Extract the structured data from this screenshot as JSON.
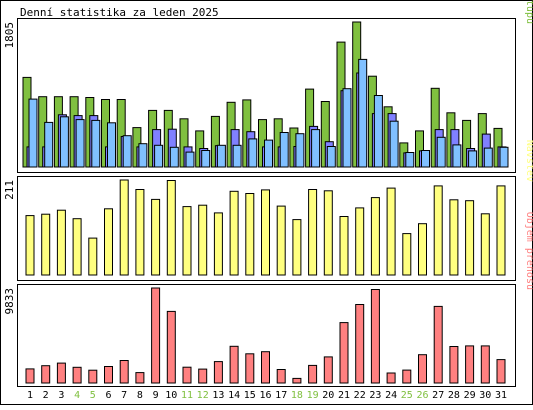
{
  "title": "Denní statistika za leden 2025",
  "days": [
    "1",
    "2",
    "3",
    "4",
    "5",
    "6",
    "7",
    "8",
    "9",
    "10",
    "11",
    "12",
    "13",
    "14",
    "15",
    "16",
    "17",
    "18",
    "19",
    "20",
    "21",
    "22",
    "23",
    "24",
    "25",
    "26",
    "27",
    "28",
    "29",
    "30",
    "31"
  ],
  "weekend_days": [
    "4",
    "5",
    "11",
    "12",
    "18",
    "19",
    "25",
    "26"
  ],
  "colors": {
    "hits": "#80c040",
    "files": "#8080ff",
    "pages": "#80c0ff",
    "visits": "#ffff80",
    "kbytes": "#ff8080",
    "weekday_label": "#000000",
    "weekend_label": "#80c040"
  },
  "chart_data": [
    {
      "type": "bar",
      "ymax_label": "1805",
      "legend": [
        {
          "text": "Stránek",
          "color": "#80c0ff"
        },
        {
          "text": "/",
          "color": "#000000"
        },
        {
          "text": "Souborů",
          "color": "#8080ff"
        },
        {
          "text": "/",
          "color": "#000000"
        },
        {
          "text": "Přístupů",
          "color": "#80c040"
        }
      ],
      "ylim": [
        0,
        1805
      ],
      "categories": [
        "1",
        "2",
        "3",
        "4",
        "5",
        "6",
        "7",
        "8",
        "9",
        "10",
        "11",
        "12",
        "13",
        "14",
        "15",
        "16",
        "17",
        "18",
        "19",
        "20",
        "21",
        "22",
        "23",
        "24",
        "25",
        "26",
        "27",
        "28",
        "29",
        "30",
        "31"
      ],
      "series": [
        {
          "name": "Přístupů",
          "key": "hits",
          "values": [
            1115,
            875,
            875,
            875,
            865,
            840,
            840,
            490,
            705,
            705,
            600,
            450,
            630,
            805,
            835,
            590,
            600,
            485,
            970,
            815,
            1555,
            1805,
            1130,
            750,
            300,
            450,
            980,
            675,
            580,
            665,
            480
          ]
        },
        {
          "name": "Souborů",
          "key": "files",
          "values": [
            250,
            250,
            650,
            640,
            640,
            250,
            380,
            250,
            465,
            470,
            250,
            230,
            265,
            465,
            440,
            250,
            250,
            255,
            505,
            315,
            950,
            1170,
            665,
            665,
            175,
            200,
            465,
            465,
            230,
            410,
            250
          ]
        },
        {
          "name": "Stránek",
          "key": "pages",
          "values": [
            845,
            555,
            625,
            590,
            580,
            550,
            390,
            290,
            270,
            245,
            185,
            205,
            270,
            270,
            350,
            335,
            430,
            415,
            465,
            255,
            975,
            1340,
            890,
            570,
            180,
            205,
            370,
            275,
            200,
            235,
            245
          ]
        }
      ]
    },
    {
      "type": "bar",
      "ymax_label": "211",
      "legend": [
        {
          "text": "Návštěv",
          "color": "#ffff80"
        }
      ],
      "ylim": [
        0,
        211
      ],
      "categories": [
        "1",
        "2",
        "3",
        "4",
        "5",
        "6",
        "7",
        "8",
        "9",
        "10",
        "11",
        "12",
        "13",
        "14",
        "15",
        "16",
        "17",
        "18",
        "19",
        "20",
        "21",
        "22",
        "23",
        "24",
        "25",
        "26",
        "27",
        "28",
        "29",
        "30",
        "31"
      ],
      "series": [
        {
          "name": "Návštěv",
          "key": "visits",
          "values": [
            132,
            135,
            144,
            125,
            82,
            147,
            211,
            190,
            168,
            210,
            152,
            155,
            138,
            186,
            181,
            189,
            153,
            123,
            190,
            187,
            130,
            149,
            172,
            193,
            92,
            114,
            198,
            167,
            165,
            136,
            198
          ]
        }
      ]
    },
    {
      "type": "bar",
      "ymax_label": "9833",
      "legend": [
        {
          "text": "Objem přenosu",
          "color": "#ff8080"
        }
      ],
      "ylim": [
        0,
        9833
      ],
      "categories": [
        "1",
        "2",
        "3",
        "4",
        "5",
        "6",
        "7",
        "8",
        "9",
        "10",
        "11",
        "12",
        "13",
        "14",
        "15",
        "16",
        "17",
        "18",
        "19",
        "20",
        "21",
        "22",
        "23",
        "24",
        "25",
        "26",
        "27",
        "28",
        "29",
        "30",
        "31"
      ],
      "series": [
        {
          "name": "Objem přenosu",
          "key": "kbytes",
          "values": [
            1460,
            1790,
            2060,
            1620,
            1320,
            1710,
            2330,
            1080,
            9833,
            7410,
            1640,
            1440,
            2220,
            3800,
            3020,
            3240,
            1400,
            480,
            1820,
            2700,
            6250,
            8120,
            9680,
            1040,
            1340,
            2930,
            7930,
            3780,
            3840,
            3840,
            2420
          ]
        }
      ]
    }
  ]
}
